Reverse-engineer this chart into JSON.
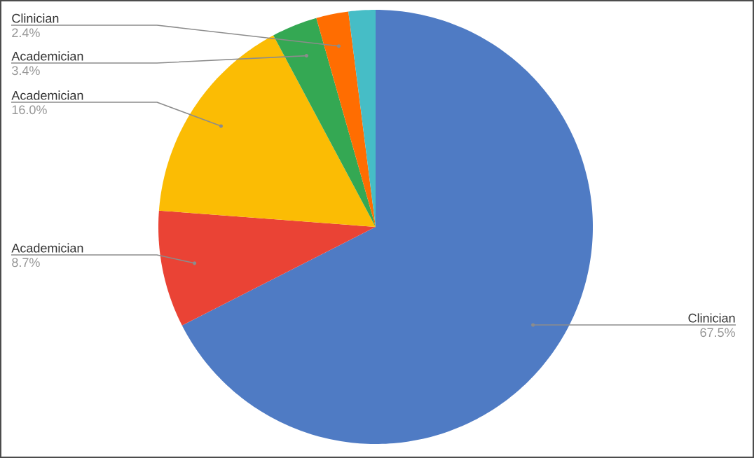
{
  "chart_data": {
    "type": "pie",
    "categories": [
      "Clinician",
      "Academician",
      "Academician",
      "Academician",
      "Clinician",
      null
    ],
    "values": [
      67.5,
      8.7,
      16.0,
      3.4,
      2.4,
      2.0
    ],
    "value_labels": [
      "67.5%",
      "8.7%",
      "16.0%",
      "3.4%",
      "2.4%",
      null
    ],
    "colors": [
      "#4f7bc4",
      "#ea4335",
      "#fbbc04",
      "#34a853",
      "#ff6d01",
      "#46bdc6"
    ]
  }
}
